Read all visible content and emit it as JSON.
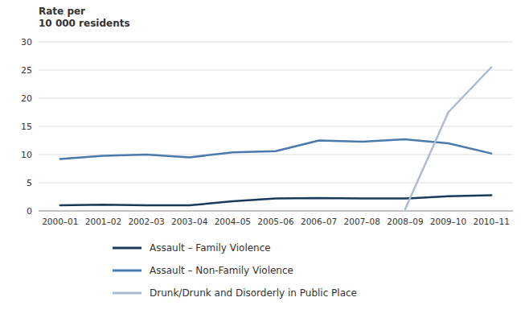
{
  "chart_data": {
    "type": "line",
    "y_label": [
      "Rate per",
      "10 000 residents"
    ],
    "categories": [
      "2000–01",
      "2001–02",
      "2002–03",
      "2003–04",
      "2004–05",
      "2005–06",
      "2006–07",
      "2007–08",
      "2008–09",
      "2009–10",
      "2010–11"
    ],
    "series": [
      {
        "name": "Assault – Family Violence",
        "color": "#1a3a5c",
        "values": [
          1.0,
          1.1,
          1.0,
          1.0,
          1.7,
          2.2,
          2.3,
          2.2,
          2.2,
          2.6,
          2.8
        ]
      },
      {
        "name": "Assault – Non-Family Violence",
        "color": "#4a7aad",
        "values": [
          9.2,
          9.8,
          10.0,
          9.5,
          10.4,
          10.6,
          12.5,
          12.3,
          12.7,
          12.0,
          10.2
        ]
      },
      {
        "name": "Drunk/Drunk and Disorderly in Public Place",
        "color": "#aabbd4",
        "values": [
          null,
          null,
          null,
          null,
          null,
          null,
          null,
          null,
          0.3,
          17.5,
          25.5
        ]
      }
    ],
    "ylim": [
      0,
      30
    ],
    "yticks": [
      0,
      5,
      10,
      15,
      20,
      25,
      30
    ],
    "grid": true,
    "legend": "bottom"
  }
}
